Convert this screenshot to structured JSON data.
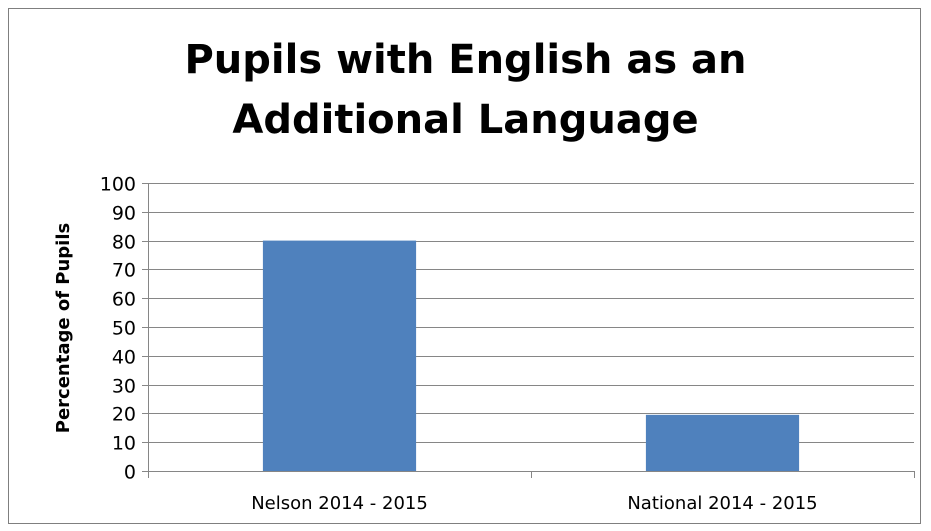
{
  "chart_data": {
    "type": "bar",
    "title": "Pupils with English as an Additional Language",
    "xlabel": "",
    "ylabel": "Percentage of Pupils",
    "categories": [
      "Nelson 2014 - 2015",
      "National 2014 - 2015"
    ],
    "values": [
      80,
      19.5
    ],
    "ylim": [
      0,
      100
    ],
    "yticks": [
      "0",
      "10",
      "20",
      "30",
      "40",
      "50",
      "60",
      "70",
      "80",
      "90",
      "100"
    ],
    "grid": true,
    "legend": "none",
    "bar_color": "#4f81bd"
  }
}
